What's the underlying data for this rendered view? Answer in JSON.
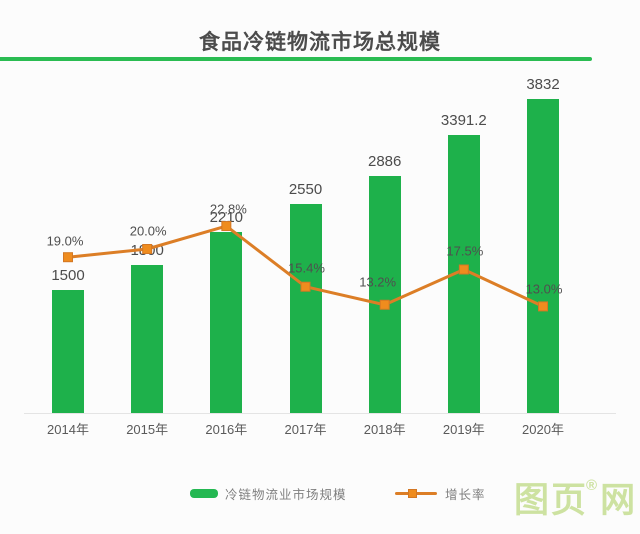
{
  "title": "食品冷链物流市场总规模",
  "colors": {
    "bar": "#1eb14b",
    "line": "#dc7e26",
    "marker": "#ef8c1e",
    "marker_border": "#d37724",
    "accent_green": "#2abc52",
    "watermark": "#cde2a1"
  },
  "legend": {
    "items": [
      {
        "label": "冷链物流业市场规模",
        "swatch": "bar-swatch"
      },
      {
        "label": "增长率",
        "swatch": "line-swatch"
      }
    ]
  },
  "watermark": {
    "left": "图页",
    "reg": "®",
    "right": "网"
  },
  "chart_data": {
    "type": "bar",
    "subtype": "bar+line combo",
    "title": "食品冷链物流市场总规模",
    "categories": [
      "2014年",
      "2015年",
      "2016年",
      "2017年",
      "2018年",
      "2019年",
      "2020年"
    ],
    "series": [
      {
        "name": "冷链物流业市场规模",
        "type": "bar",
        "values": [
          1500,
          1800,
          2210,
          2550,
          2886,
          3391.2,
          3832
        ],
        "labels": [
          "1500",
          "1800",
          "2210",
          "2550",
          "2886",
          "3391.2",
          "3832"
        ],
        "color": "#1eb14b"
      },
      {
        "name": "增长率",
        "type": "line",
        "values": [
          19.0,
          20.0,
          22.8,
          15.4,
          13.2,
          17.5,
          13.0
        ],
        "labels": [
          "19.0%",
          "20.0%",
          "22.8%",
          "15.4%",
          "13.2%",
          "17.5%",
          "13.0%"
        ],
        "color": "#dc7e26"
      }
    ],
    "ylim_left": [
      0,
      4000
    ],
    "ylim_right": [
      0,
      25
    ],
    "grid": false,
    "legend_position": "bottom",
    "xlabel": "",
    "ylabel": ""
  }
}
